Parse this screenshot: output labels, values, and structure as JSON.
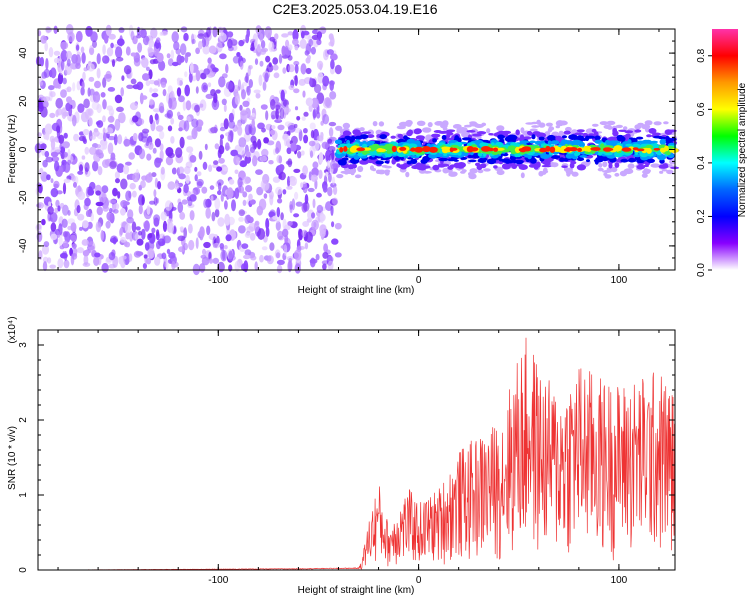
{
  "figure": {
    "title": "C2E3.2025.053.04.19.E16"
  },
  "chart_data": [
    {
      "type": "heatmap",
      "title": "C2E3.2025.053.04.19.E16",
      "xlabel": "Height of straight line (km)",
      "ylabel": "Frequency (Hz)",
      "xlim": [
        -190,
        128
      ],
      "ylim": [
        -50,
        50
      ],
      "x_ticks": [
        -100,
        0,
        100
      ],
      "y_ticks": [
        -40,
        -20,
        0,
        20,
        40
      ],
      "colorbar": {
        "label": "Normalized spectral amplitude",
        "range": [
          0.0,
          0.9
        ],
        "ticks": [
          0.0,
          0.2,
          0.4,
          0.6,
          0.8
        ],
        "colormap": [
          "#ff33aa",
          "#ff0000",
          "#ff9900",
          "#ffff00",
          "#00ff00",
          "#00ffff",
          "#0066ff",
          "#0000ff",
          "#8800ff",
          "#ffffff"
        ]
      },
      "regions": [
        {
          "x_range": [
            -190,
            -40
          ],
          "description": "broadband noise",
          "amplitude_range": [
            0.0,
            0.1
          ]
        },
        {
          "x_range": [
            -40,
            128
          ],
          "center_frequency": 0,
          "half_width": 6,
          "amplitude_range": [
            0.1,
            0.9
          ]
        }
      ]
    },
    {
      "type": "line",
      "xlabel": "Height of straight line (km)",
      "ylabel": "SNR (10 * v/v)",
      "y_multiplier": "(x10⁴)",
      "xlim": [
        -190,
        128
      ],
      "ylim": [
        0,
        3.2
      ],
      "x_ticks": [
        -100,
        0,
        100
      ],
      "y_ticks": [
        0,
        1,
        2,
        3
      ],
      "color": "#ee3333",
      "series": [
        {
          "x": [
            -190,
            -120,
            -60,
            -30,
            -28,
            -24,
            -20,
            -15,
            -10,
            -5,
            0,
            10,
            20,
            30,
            40,
            50,
            55,
            60,
            70,
            80,
            90,
            100,
            110,
            120,
            128
          ],
          "y": [
            0.0,
            0.01,
            0.02,
            0.03,
            0.2,
            0.8,
            1.2,
            0.6,
            0.9,
            1.1,
            0.9,
            1.1,
            1.6,
            1.8,
            2.0,
            2.9,
            3.2,
            2.7,
            2.4,
            2.8,
            2.6,
            2.5,
            2.6,
            2.7,
            2.4
          ]
        }
      ]
    }
  ]
}
